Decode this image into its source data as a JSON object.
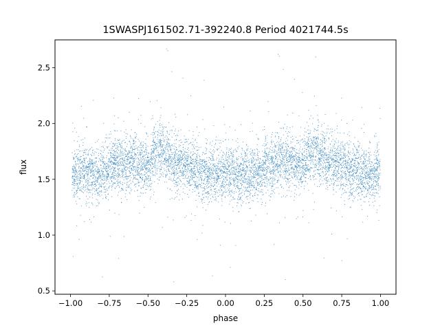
{
  "chart_data": {
    "type": "scatter",
    "title": "1SWASPJ161502.71-392240.8 Period 4021744.5s",
    "xlabel": "phase",
    "ylabel": "flux",
    "xlim": [
      -1.1,
      1.1
    ],
    "ylim": [
      0.47,
      2.75
    ],
    "xticks": [
      -1.0,
      -0.75,
      -0.5,
      -0.25,
      0.0,
      0.25,
      0.5,
      0.75,
      1.0
    ],
    "xtick_labels": [
      "−1.00",
      "−0.75",
      "−0.50",
      "−0.25",
      "0.00",
      "0.25",
      "0.50",
      "0.75",
      "1.00"
    ],
    "yticks": [
      0.5,
      1.0,
      1.5,
      2.0,
      2.5
    ],
    "ytick_labels": [
      "0.5",
      "1.0",
      "1.5",
      "2.0",
      "2.5"
    ],
    "grid": false,
    "legend": "none",
    "marker_color": "#1f77b4",
    "period_phase": [
      -1.0,
      1.0
    ],
    "series": [
      {
        "phase_center": [
          -0.97,
          -0.93,
          -0.89,
          -0.85,
          -0.81,
          -0.77,
          -0.73,
          -0.7,
          -0.66,
          -0.62,
          -0.58,
          -0.54,
          -0.5,
          -0.46,
          -0.42,
          -0.38,
          -0.34,
          -0.3,
          -0.26,
          -0.22,
          -0.18,
          -0.14,
          -0.1,
          -0.06,
          -0.02,
          0.02,
          0.06,
          0.1,
          0.14,
          0.18,
          0.22,
          0.26,
          0.3,
          0.34,
          0.38,
          0.42,
          0.46,
          0.5,
          0.54,
          0.58,
          0.62,
          0.66,
          0.7,
          0.74,
          0.78,
          0.82,
          0.86,
          0.9,
          0.94,
          0.98
        ],
        "flux_median": [
          1.55,
          1.56,
          1.57,
          1.54,
          1.53,
          1.57,
          1.62,
          1.64,
          1.63,
          1.66,
          1.64,
          1.62,
          1.62,
          1.72,
          1.78,
          1.7,
          1.64,
          1.62,
          1.63,
          1.6,
          1.57,
          1.56,
          1.54,
          1.55,
          1.54,
          1.56,
          1.55,
          1.55,
          1.53,
          1.55,
          1.57,
          1.62,
          1.63,
          1.65,
          1.66,
          1.65,
          1.62,
          1.63,
          1.72,
          1.77,
          1.7,
          1.65,
          1.64,
          1.62,
          1.61,
          1.59,
          1.56,
          1.54,
          1.54,
          1.56
        ]
      }
    ]
  }
}
